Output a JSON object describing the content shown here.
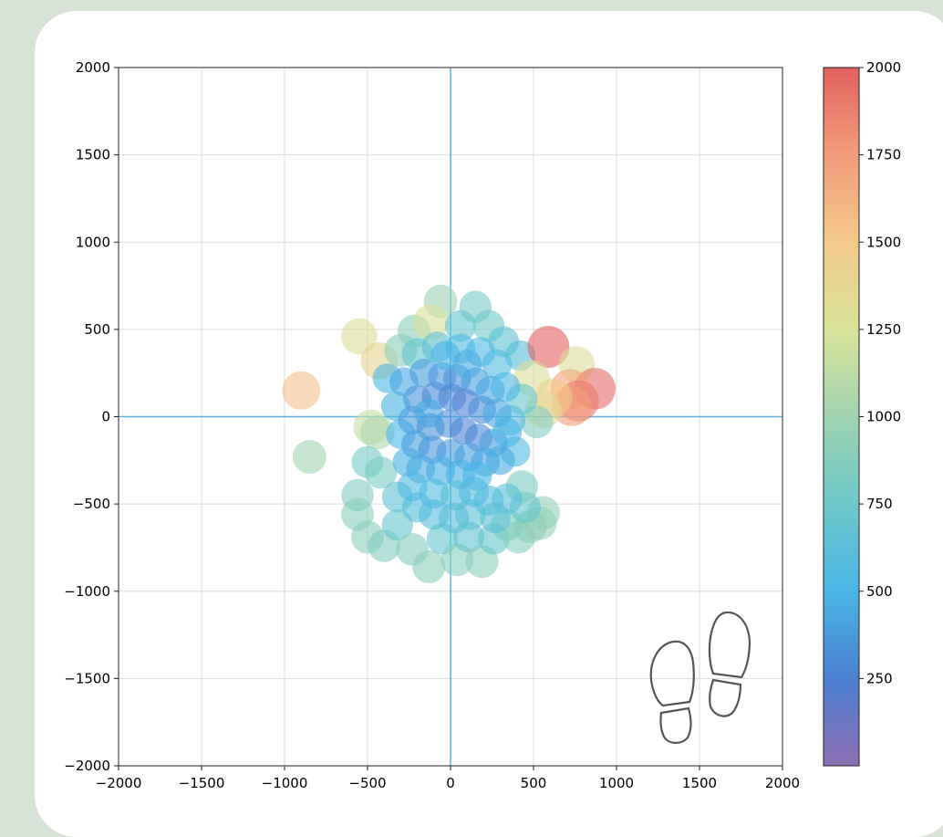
{
  "chart_data": {
    "type": "scatter",
    "title": "",
    "xlabel": "",
    "ylabel": "",
    "xlim": [
      -2000,
      2000
    ],
    "ylim": [
      -2000,
      2000
    ],
    "grid": true,
    "colormap": "Spectral_r",
    "colorbar": {
      "range": [
        0,
        2000
      ],
      "ticks": [
        "2000",
        "1750",
        "1500",
        "1250",
        "1000",
        "750",
        "500",
        "250"
      ],
      "tick_values": [
        2000,
        1750,
        1500,
        1250,
        1000,
        750,
        500,
        250
      ]
    },
    "x_ticks": [
      "−2000",
      "−1500",
      "−1000",
      "−500",
      "0",
      "500",
      "1000",
      "1500",
      "2000"
    ],
    "x_tick_values": [
      -2000,
      -1500,
      -1000,
      -500,
      0,
      500,
      1000,
      1500,
      2000
    ],
    "y_ticks": [
      "2000",
      "1500",
      "1000",
      "500",
      "0",
      "−500",
      "−1000",
      "−1500",
      "−2000"
    ],
    "y_tick_values": [
      2000,
      1500,
      1000,
      500,
      0,
      -500,
      -1000,
      -1500,
      -2000
    ],
    "reference_lines": {
      "x": 0,
      "y": 0,
      "color": "#5bb3de"
    },
    "points": [
      {
        "x": -900,
        "y": 150,
        "c": 1550
      },
      {
        "x": -850,
        "y": -230,
        "c": 1000
      },
      {
        "x": -550,
        "y": 460,
        "c": 1300
      },
      {
        "x": -430,
        "y": 320,
        "c": 1400
      },
      {
        "x": -480,
        "y": -60,
        "c": 1150
      },
      {
        "x": -440,
        "y": -90,
        "c": 1050
      },
      {
        "x": -500,
        "y": -260,
        "c": 780
      },
      {
        "x": -420,
        "y": -320,
        "c": 820
      },
      {
        "x": -560,
        "y": -450,
        "c": 850
      },
      {
        "x": -560,
        "y": -560,
        "c": 880
      },
      {
        "x": -500,
        "y": -690,
        "c": 900
      },
      {
        "x": -400,
        "y": -740,
        "c": 850
      },
      {
        "x": -320,
        "y": -620,
        "c": 700
      },
      {
        "x": -230,
        "y": -760,
        "c": 860
      },
      {
        "x": -130,
        "y": -860,
        "c": 900
      },
      {
        "x": -50,
        "y": -700,
        "c": 700
      },
      {
        "x": 40,
        "y": -820,
        "c": 880
      },
      {
        "x": 110,
        "y": -690,
        "c": 680
      },
      {
        "x": 190,
        "y": -830,
        "c": 900
      },
      {
        "x": 260,
        "y": -700,
        "c": 720
      },
      {
        "x": 340,
        "y": -620,
        "c": 820
      },
      {
        "x": 410,
        "y": -690,
        "c": 880
      },
      {
        "x": 480,
        "y": -630,
        "c": 900
      },
      {
        "x": 540,
        "y": -610,
        "c": 950
      },
      {
        "x": 560,
        "y": -550,
        "c": 930
      },
      {
        "x": 450,
        "y": -520,
        "c": 700
      },
      {
        "x": 430,
        "y": -400,
        "c": 820
      },
      {
        "x": 270,
        "y": -580,
        "c": 650
      },
      {
        "x": -320,
        "y": -460,
        "c": 650
      },
      {
        "x": -200,
        "y": -520,
        "c": 580
      },
      {
        "x": -100,
        "y": -560,
        "c": 600
      },
      {
        "x": 20,
        "y": -580,
        "c": 620
      },
      {
        "x": 120,
        "y": -560,
        "c": 640
      },
      {
        "x": 230,
        "y": -480,
        "c": 580
      },
      {
        "x": 340,
        "y": -470,
        "c": 620
      },
      {
        "x": -60,
        "y": 660,
        "c": 980
      },
      {
        "x": 150,
        "y": 630,
        "c": 800
      },
      {
        "x": -220,
        "y": 490,
        "c": 900
      },
      {
        "x": -120,
        "y": 540,
        "c": 1250
      },
      {
        "x": 60,
        "y": 520,
        "c": 700
      },
      {
        "x": 230,
        "y": 520,
        "c": 760
      },
      {
        "x": 320,
        "y": 430,
        "c": 640
      },
      {
        "x": 420,
        "y": 350,
        "c": 600
      },
      {
        "x": -300,
        "y": 380,
        "c": 900
      },
      {
        "x": -200,
        "y": 360,
        "c": 700
      },
      {
        "x": -80,
        "y": 400,
        "c": 650
      },
      {
        "x": 60,
        "y": 390,
        "c": 560
      },
      {
        "x": 180,
        "y": 370,
        "c": 540
      },
      {
        "x": 280,
        "y": 300,
        "c": 560
      },
      {
        "x": 590,
        "y": 400,
        "c": 2000
      },
      {
        "x": 760,
        "y": 300,
        "c": 1300
      },
      {
        "x": 870,
        "y": 160,
        "c": 1950
      },
      {
        "x": 720,
        "y": 160,
        "c": 1700
      },
      {
        "x": 770,
        "y": 90,
        "c": 1900
      },
      {
        "x": 730,
        "y": 60,
        "c": 1750
      },
      {
        "x": 620,
        "y": 110,
        "c": 1500
      },
      {
        "x": 560,
        "y": 40,
        "c": 1350
      },
      {
        "x": 490,
        "y": 220,
        "c": 1300
      },
      {
        "x": 520,
        "y": -30,
        "c": 850
      },
      {
        "x": 430,
        "y": 100,
        "c": 700
      },
      {
        "x": 360,
        "y": -20,
        "c": 600
      },
      {
        "x": 390,
        "y": -200,
        "c": 560
      },
      {
        "x": -380,
        "y": 220,
        "c": 500
      },
      {
        "x": -330,
        "y": 60,
        "c": 480
      },
      {
        "x": -300,
        "y": -100,
        "c": 500
      },
      {
        "x": -260,
        "y": -260,
        "c": 480
      },
      {
        "x": -280,
        "y": 200,
        "c": 420
      },
      {
        "x": -160,
        "y": 250,
        "c": 380
      },
      {
        "x": -50,
        "y": 230,
        "c": 360
      },
      {
        "x": 40,
        "y": 220,
        "c": 330
      },
      {
        "x": 150,
        "y": 200,
        "c": 380
      },
      {
        "x": 240,
        "y": 150,
        "c": 420
      },
      {
        "x": -200,
        "y": 100,
        "c": 350
      },
      {
        "x": -90,
        "y": 120,
        "c": 300
      },
      {
        "x": 10,
        "y": 110,
        "c": 280
      },
      {
        "x": 90,
        "y": 80,
        "c": 260
      },
      {
        "x": 190,
        "y": 40,
        "c": 310
      },
      {
        "x": 280,
        "y": 20,
        "c": 420
      },
      {
        "x": -230,
        "y": -20,
        "c": 380
      },
      {
        "x": -120,
        "y": -60,
        "c": 330
      },
      {
        "x": -10,
        "y": -40,
        "c": 330
      },
      {
        "x": 80,
        "y": -80,
        "c": 260
      },
      {
        "x": 170,
        "y": -120,
        "c": 290
      },
      {
        "x": 260,
        "y": -150,
        "c": 380
      },
      {
        "x": -210,
        "y": -160,
        "c": 400
      },
      {
        "x": -110,
        "y": -190,
        "c": 340
      },
      {
        "x": 0,
        "y": -210,
        "c": 370
      },
      {
        "x": 110,
        "y": -230,
        "c": 390
      },
      {
        "x": 210,
        "y": -260,
        "c": 420
      },
      {
        "x": 300,
        "y": -250,
        "c": 450
      },
      {
        "x": -180,
        "y": -300,
        "c": 440
      },
      {
        "x": -60,
        "y": -310,
        "c": 460
      },
      {
        "x": 60,
        "y": -330,
        "c": 480
      },
      {
        "x": 160,
        "y": -340,
        "c": 500
      },
      {
        "x": -230,
        "y": -400,
        "c": 560
      },
      {
        "x": -100,
        "y": -440,
        "c": 560
      },
      {
        "x": 30,
        "y": -450,
        "c": 600
      },
      {
        "x": 140,
        "y": -430,
        "c": 560
      },
      {
        "x": -30,
        "y": 350,
        "c": 480
      },
      {
        "x": 100,
        "y": 300,
        "c": 450
      },
      {
        "x": -130,
        "y": 20,
        "c": 420
      },
      {
        "x": 330,
        "y": 170,
        "c": 520
      },
      {
        "x": 340,
        "y": -90,
        "c": 500
      }
    ]
  },
  "decor": {
    "footprints_icon": "footprints-icon"
  }
}
